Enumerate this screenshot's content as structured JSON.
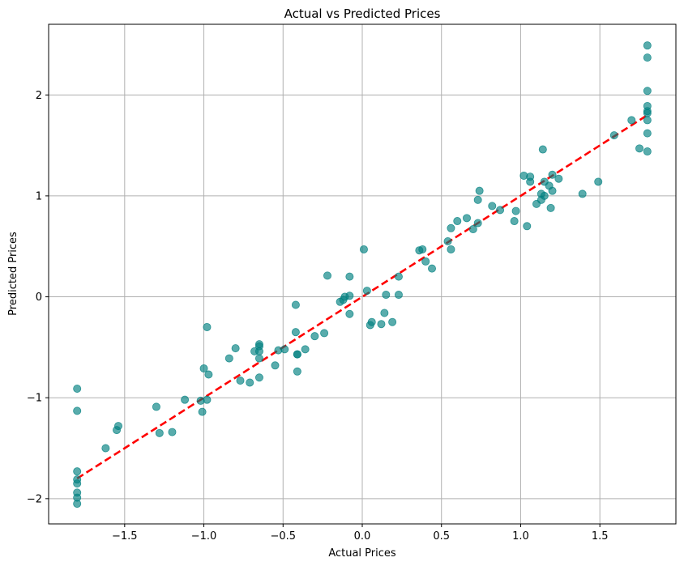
{
  "chart_data": {
    "type": "scatter",
    "title": "Actual vs Predicted Prices",
    "xlabel": "Actual Prices",
    "ylabel": "Predicted Prices",
    "xlim": [
      -1.98,
      1.98
    ],
    "ylim": [
      -2.25,
      2.7
    ],
    "xticks": [
      -1.5,
      -1.0,
      -0.5,
      0.0,
      0.5,
      1.0,
      1.5
    ],
    "xtick_labels": [
      "−1.5",
      "−1.0",
      "−0.5",
      "0.0",
      "0.5",
      "1.0",
      "1.5"
    ],
    "yticks": [
      -2,
      -1,
      0,
      1,
      2
    ],
    "ytick_labels": [
      "−2",
      "−1",
      "0",
      "1",
      "2"
    ],
    "grid": true,
    "colors": {
      "points": "#008080",
      "line": "#ff0000"
    },
    "reference_line": {
      "x": [
        -1.8,
        1.8
      ],
      "y": [
        -1.8,
        1.8
      ],
      "style": "dashed"
    },
    "points": [
      [
        -1.8,
        -0.91
      ],
      [
        -1.8,
        -1.13
      ],
      [
        -1.8,
        -1.73
      ],
      [
        -1.8,
        -1.81
      ],
      [
        -1.8,
        -1.85
      ],
      [
        -1.8,
        -1.94
      ],
      [
        -1.8,
        -1.99
      ],
      [
        -1.8,
        -2.05
      ],
      [
        -1.62,
        -1.5
      ],
      [
        -1.54,
        -1.28
      ],
      [
        -1.55,
        -1.32
      ],
      [
        -1.3,
        -1.09
      ],
      [
        -1.28,
        -1.35
      ],
      [
        -1.2,
        -1.34
      ],
      [
        -1.12,
        -1.02
      ],
      [
        -1.02,
        -1.03
      ],
      [
        -1.01,
        -1.14
      ],
      [
        -1.0,
        -0.71
      ],
      [
        -0.97,
        -0.77
      ],
      [
        -0.98,
        -0.3
      ],
      [
        -0.98,
        -1.02
      ],
      [
        -0.84,
        -0.61
      ],
      [
        -0.8,
        -0.51
      ],
      [
        -0.77,
        -0.83
      ],
      [
        -0.71,
        -0.85
      ],
      [
        -0.68,
        -0.54
      ],
      [
        -0.65,
        -0.47
      ],
      [
        -0.65,
        -0.49
      ],
      [
        -0.65,
        -0.54
      ],
      [
        -0.65,
        -0.61
      ],
      [
        -0.65,
        -0.8
      ],
      [
        -0.55,
        -0.68
      ],
      [
        -0.53,
        -0.53
      ],
      [
        -0.49,
        -0.52
      ],
      [
        -0.42,
        -0.08
      ],
      [
        -0.42,
        -0.35
      ],
      [
        -0.41,
        -0.57
      ],
      [
        -0.41,
        -0.57
      ],
      [
        -0.41,
        -0.74
      ],
      [
        -0.36,
        -0.52
      ],
      [
        -0.3,
        -0.39
      ],
      [
        -0.24,
        -0.36
      ],
      [
        -0.22,
        0.21
      ],
      [
        -0.14,
        -0.05
      ],
      [
        -0.12,
        -0.03
      ],
      [
        -0.11,
        0.0
      ],
      [
        -0.08,
        0.01
      ],
      [
        -0.08,
        0.2
      ],
      [
        -0.08,
        -0.17
      ],
      [
        0.01,
        0.47
      ],
      [
        0.03,
        0.06
      ],
      [
        0.05,
        -0.28
      ],
      [
        0.06,
        -0.25
      ],
      [
        0.12,
        -0.27
      ],
      [
        0.14,
        -0.16
      ],
      [
        0.15,
        0.02
      ],
      [
        0.19,
        -0.25
      ],
      [
        0.23,
        0.02
      ],
      [
        0.23,
        0.2
      ],
      [
        0.36,
        0.46
      ],
      [
        0.38,
        0.47
      ],
      [
        0.4,
        0.35
      ],
      [
        0.44,
        0.28
      ],
      [
        0.54,
        0.55
      ],
      [
        0.56,
        0.68
      ],
      [
        0.56,
        0.47
      ],
      [
        0.6,
        0.75
      ],
      [
        0.66,
        0.78
      ],
      [
        0.7,
        0.67
      ],
      [
        0.73,
        0.73
      ],
      [
        0.73,
        0.96
      ],
      [
        0.74,
        1.05
      ],
      [
        0.82,
        0.9
      ],
      [
        0.87,
        0.86
      ],
      [
        0.96,
        0.75
      ],
      [
        0.97,
        0.85
      ],
      [
        1.02,
        1.2
      ],
      [
        1.04,
        0.7
      ],
      [
        1.06,
        1.19
      ],
      [
        1.06,
        1.14
      ],
      [
        1.1,
        0.92
      ],
      [
        1.13,
        1.02
      ],
      [
        1.13,
        0.96
      ],
      [
        1.14,
        1.46
      ],
      [
        1.15,
        1.0
      ],
      [
        1.15,
        1.14
      ],
      [
        1.18,
        1.1
      ],
      [
        1.19,
        0.88
      ],
      [
        1.2,
        1.21
      ],
      [
        1.2,
        1.05
      ],
      [
        1.24,
        1.17
      ],
      [
        1.39,
        1.02
      ],
      [
        1.49,
        1.14
      ],
      [
        1.59,
        1.6
      ],
      [
        1.7,
        1.75
      ],
      [
        1.75,
        1.47
      ],
      [
        1.8,
        1.44
      ],
      [
        1.8,
        1.62
      ],
      [
        1.8,
        1.75
      ],
      [
        1.8,
        1.82
      ],
      [
        1.8,
        1.84
      ],
      [
        1.8,
        1.89
      ],
      [
        1.8,
        2.04
      ],
      [
        1.8,
        2.37
      ],
      [
        1.8,
        2.49
      ]
    ]
  }
}
